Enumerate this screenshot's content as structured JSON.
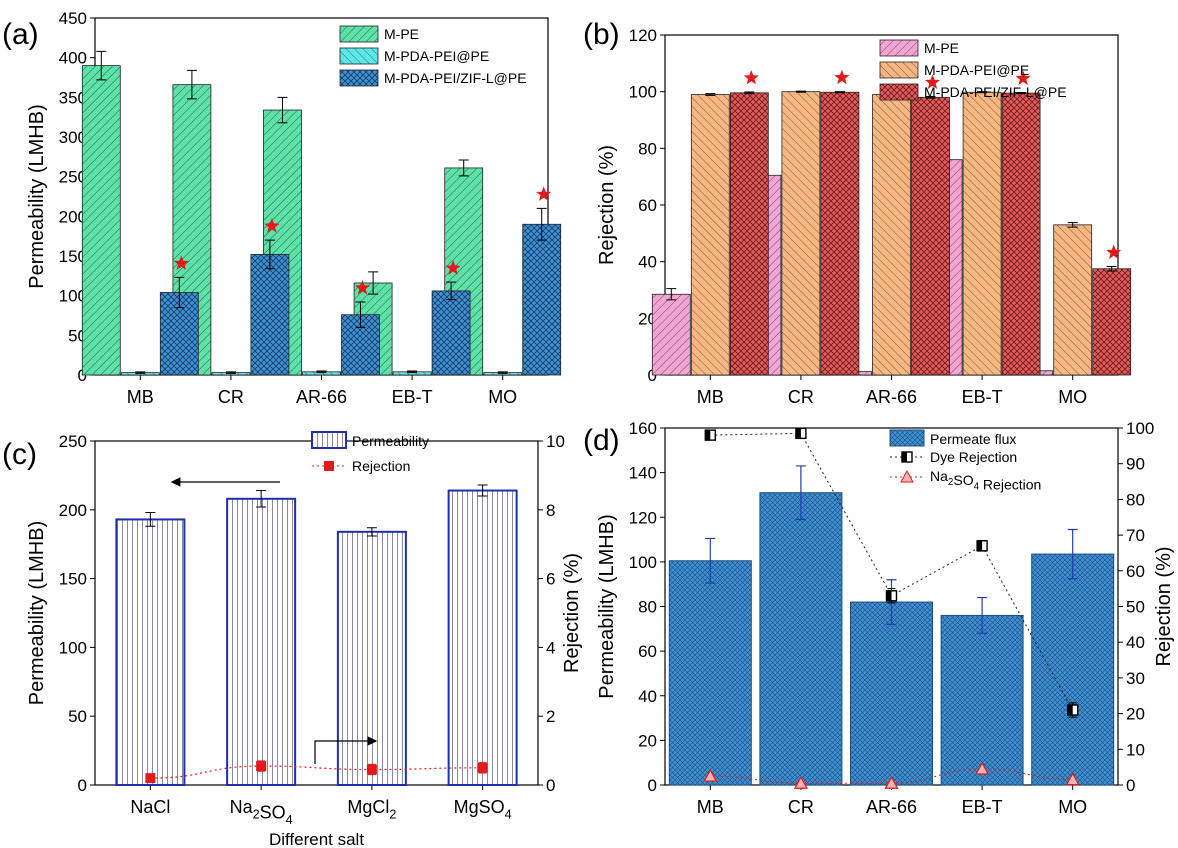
{
  "chart_data": [
    {
      "panel_label": "(a)",
      "type": "bar",
      "categories": [
        "MB",
        "CR",
        "AR-66",
        "EB-T",
        "MO"
      ],
      "ylabel": "Permeability (LMHB)",
      "xlabel": "",
      "ylim": [
        0,
        450
      ],
      "yticks": [
        0,
        50,
        100,
        150,
        200,
        250,
        300,
        350,
        400,
        450
      ],
      "legend_position": "top-right",
      "series": [
        {
          "name": "M-PE",
          "values": [
            390,
            366,
            334,
            116,
            261
          ],
          "errors": [
            18,
            18,
            16,
            14,
            10
          ],
          "color": "#5ee0a8",
          "pattern": "diag-down"
        },
        {
          "name": "M-PDA-PEI@PE",
          "values": [
            3,
            3,
            4,
            4,
            3
          ],
          "errors": [
            1,
            1,
            1,
            1,
            1
          ],
          "color": "#5fe6e6",
          "pattern": "diag-up"
        },
        {
          "name": "M-PDA-PEI/ZIF-L@PE",
          "values": [
            104,
            152,
            76,
            106,
            190
          ],
          "errors": [
            19,
            18,
            16,
            11,
            20
          ],
          "color": "#3f8fd2",
          "pattern": "cross"
        }
      ],
      "star_series": "M-PDA-PEI/ZIF-L@PE",
      "star_color": "#e31a1c"
    },
    {
      "panel_label": "(b)",
      "type": "bar",
      "categories": [
        "MB",
        "CR",
        "AR-66",
        "EB-T",
        "MO"
      ],
      "ylabel": "Rejection (%)",
      "xlabel": "",
      "ylim": [
        0,
        120
      ],
      "yticks": [
        0,
        20,
        40,
        60,
        80,
        100,
        120
      ],
      "legend_position": "top-right",
      "series": [
        {
          "name": "M-PE",
          "values": [
            28.5,
            70.5,
            1.2,
            76,
            1.5
          ],
          "errors": [
            2,
            3,
            0.5,
            5,
            0.5
          ],
          "color": "#f0a6d2",
          "pattern": "diag-down"
        },
        {
          "name": "M-PDA-PEI@PE",
          "values": [
            99,
            100,
            99,
            99.8,
            53
          ],
          "errors": [
            0.3,
            0.2,
            0.4,
            0.2,
            0.8
          ],
          "color": "#f5b885",
          "pattern": "diag-up"
        },
        {
          "name": "M-PDA-PEI/ZIF-L@PE",
          "values": [
            99.6,
            99.8,
            98,
            99.5,
            37.5
          ],
          "errors": [
            0.3,
            0.2,
            0.3,
            0.2,
            0.8
          ],
          "color": "#e05b5b",
          "pattern": "cross"
        }
      ],
      "star_series": "M-PDA-PEI/ZIF-L@PE",
      "star_color": "#e31a1c"
    },
    {
      "panel_label": "(c)",
      "type": "bar",
      "categories": [
        "NaCl",
        "Na2SO4",
        "MgCl2",
        "MgSO4"
      ],
      "category_labels": [
        {
          "base": "NaCl",
          "sub": ""
        },
        {
          "base": "Na",
          "sub": "2",
          "rest": "SO",
          "sub2": "4"
        },
        {
          "base": "MgCl",
          "sub": "2",
          "rest": "",
          "sub2": ""
        },
        {
          "base": "MgSO",
          "sub": "4",
          "rest": "",
          "sub2": ""
        }
      ],
      "xlabel": "Different salt",
      "ylabel": "Permeability (LMHB)",
      "ylim": [
        0,
        250
      ],
      "yticks": [
        0,
        50,
        100,
        150,
        200,
        250
      ],
      "y2label": "Rejection (%)",
      "y2lim": [
        0,
        10
      ],
      "y2ticks": [
        0,
        2,
        4,
        6,
        8,
        10
      ],
      "legend_position": "top-right",
      "series": [
        {
          "name": "Permeability",
          "axis": "left",
          "kind": "bar",
          "values": [
            193,
            208,
            184,
            214
          ],
          "errors": [
            5,
            6,
            3,
            4
          ],
          "color": "#1f2fa8"
        },
        {
          "name": "Rejection",
          "axis": "right",
          "kind": "line",
          "values": [
            0.2,
            0.55,
            0.45,
            0.5
          ],
          "errors": [
            0.05,
            0.15,
            0.15,
            0.15
          ],
          "color": "#e31a1c"
        }
      ]
    },
    {
      "panel_label": "(d)",
      "type": "bar",
      "categories": [
        "MB",
        "CR",
        "AR-66",
        "EB-T",
        "MO"
      ],
      "xlabel": "",
      "ylabel": "Permeability (LMHB)",
      "ylim": [
        0,
        160
      ],
      "yticks": [
        0,
        20,
        40,
        60,
        80,
        100,
        120,
        140,
        160
      ],
      "y2label": "Rejection (%)",
      "y2lim": [
        0,
        100
      ],
      "y2ticks": [
        0,
        10,
        20,
        30,
        40,
        50,
        60,
        70,
        80,
        90,
        100
      ],
      "legend_position": "top-right",
      "series": [
        {
          "name": "Permeate flux",
          "axis": "left",
          "kind": "bar",
          "values": [
            100.5,
            131,
            82,
            76,
            103.5
          ],
          "errors": [
            10,
            12,
            10,
            8,
            11
          ],
          "color": "#3f8fd2"
        },
        {
          "name": "Dye Rejection",
          "axis": "right",
          "kind": "line",
          "values": [
            98,
            98.5,
            53,
            67,
            21
          ],
          "errors": [
            0.8,
            0.5,
            2,
            1.5,
            2
          ],
          "color": "#222222"
        },
        {
          "name": "Na2SO4 Rejection",
          "legend_parts": {
            "base": "Na",
            "sub": "2",
            "rest": "SO",
            "sub2": "4",
            "tail": " Rejection"
          },
          "axis": "right",
          "kind": "line",
          "values": [
            2.5,
            0.5,
            0.5,
            4.5,
            1.5
          ],
          "errors": [
            0.5,
            0.3,
            0.3,
            0.8,
            0.5
          ],
          "color": "#e31a1c"
        }
      ]
    }
  ]
}
